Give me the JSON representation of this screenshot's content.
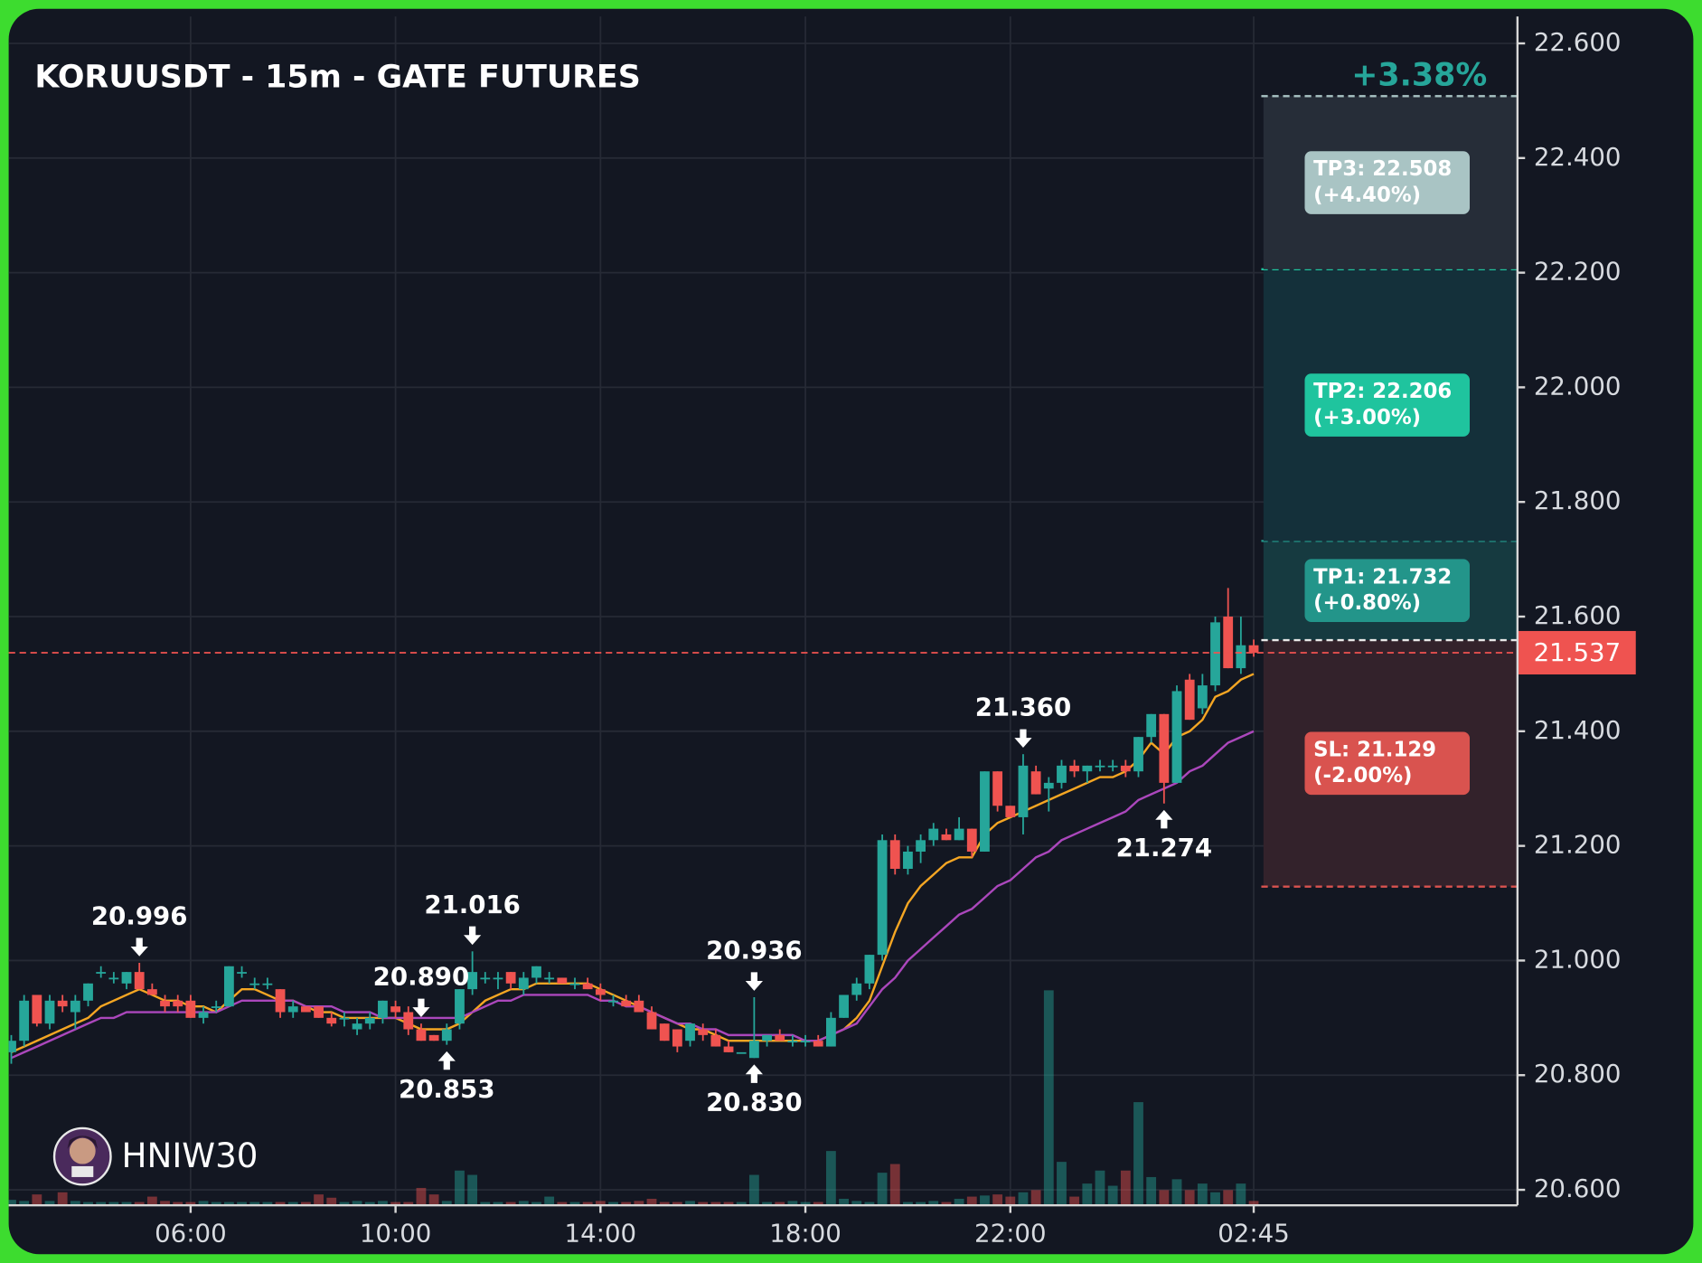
{
  "chart_data": {
    "type": "candlestick",
    "title": "KORUUSDT - 15m - GATE FUTURES",
    "categories": [
      null,
      null,
      null,
      null,
      null,
      null,
      null,
      null,
      null,
      null,
      null,
      null,
      null,
      null,
      "06:00",
      null,
      null,
      null,
      null,
      null,
      null,
      null,
      null,
      null,
      null,
      null,
      null,
      null,
      null,
      null,
      "10:00",
      null,
      null,
      null,
      null,
      null,
      null,
      null,
      null,
      null,
      null,
      null,
      null,
      null,
      null,
      null,
      "14:00",
      null,
      null,
      null,
      null,
      null,
      null,
      null,
      null,
      null,
      null,
      null,
      null,
      null,
      null,
      null,
      "18:00",
      null,
      null,
      null,
      null,
      null,
      null,
      null,
      null,
      null,
      null,
      null,
      null,
      null,
      null,
      null,
      "22:00",
      null,
      null,
      null,
      null,
      null,
      null,
      null,
      null,
      null,
      null,
      null,
      null,
      null,
      null,
      null,
      null,
      null,
      null,
      "02:45"
    ],
    "open": [
      20.84,
      20.86,
      20.94,
      20.89,
      20.93,
      20.91,
      20.93,
      20.98,
      20.97,
      20.96,
      20.98,
      20.95,
      20.93,
      20.93,
      20.93,
      20.9,
      20.92,
      20.92,
      20.98,
      20.96,
      20.96,
      20.95,
      20.91,
      20.92,
      20.92,
      20.9,
      20.9,
      20.88,
      20.89,
      20.9,
      20.92,
      20.91,
      20.88,
      20.87,
      20.86,
      20.89,
      20.95,
      20.97,
      20.97,
      20.98,
      20.95,
      20.97,
      20.97,
      20.97,
      20.96,
      20.96,
      20.95,
      20.93,
      20.93,
      20.93,
      20.91,
      20.89,
      20.88,
      20.86,
      20.88,
      20.87,
      20.85,
      20.84,
      20.83,
      20.86,
      20.87,
      20.86,
      20.86,
      20.86,
      20.85,
      20.9,
      20.94,
      20.96,
      21.01,
      21.21,
      21.16,
      21.19,
      21.21,
      21.22,
      21.21,
      21.23,
      21.19,
      21.33,
      21.27,
      21.25,
      21.33,
      21.3,
      21.31,
      21.34,
      21.33,
      21.34,
      21.34,
      21.34,
      21.33,
      21.39,
      21.43,
      21.31,
      21.49,
      21.44,
      21.48,
      21.6,
      21.51,
      21.55
    ],
    "high": [
      20.87,
      20.94,
      20.94,
      20.94,
      20.94,
      20.94,
      20.96,
      20.99,
      20.98,
      20.98,
      20.996,
      20.96,
      20.94,
      20.94,
      20.94,
      20.92,
      20.93,
      20.99,
      20.99,
      20.97,
      20.97,
      20.95,
      20.93,
      20.92,
      20.92,
      20.91,
      20.91,
      20.9,
      20.91,
      20.93,
      20.93,
      20.92,
      20.89,
      20.87,
      20.89,
      20.95,
      21.016,
      20.98,
      20.98,
      20.98,
      20.98,
      20.99,
      20.98,
      20.97,
      20.97,
      20.97,
      20.96,
      20.94,
      20.94,
      20.94,
      20.92,
      20.89,
      20.88,
      20.89,
      20.89,
      20.88,
      20.86,
      20.84,
      20.936,
      20.87,
      20.88,
      20.87,
      20.87,
      20.87,
      20.91,
      20.94,
      20.97,
      21.01,
      21.22,
      21.22,
      21.2,
      21.22,
      21.24,
      21.23,
      21.25,
      21.23,
      21.33,
      21.33,
      21.27,
      21.36,
      21.34,
      21.32,
      21.35,
      21.35,
      21.34,
      21.35,
      21.35,
      21.35,
      21.39,
      21.43,
      21.43,
      21.48,
      21.5,
      21.5,
      21.6,
      21.65,
      21.6,
      21.56
    ],
    "low": [
      20.82,
      20.85,
      20.885,
      20.88,
      20.91,
      20.88,
      20.92,
      20.97,
      20.96,
      20.95,
      20.95,
      20.94,
      20.91,
      20.91,
      20.9,
      20.89,
      20.91,
      20.92,
      20.97,
      20.95,
      20.95,
      20.9,
      20.9,
      20.91,
      20.9,
      20.885,
      20.885,
      20.87,
      20.88,
      20.89,
      20.9,
      20.87,
      20.86,
      20.86,
      20.853,
      20.88,
      20.94,
      20.96,
      20.95,
      20.95,
      20.94,
      20.96,
      20.96,
      20.96,
      20.95,
      20.95,
      20.93,
      20.92,
      20.92,
      20.91,
      20.88,
      20.86,
      20.84,
      20.85,
      20.86,
      20.85,
      20.84,
      20.84,
      20.83,
      20.85,
      20.86,
      20.85,
      20.85,
      20.85,
      20.85,
      20.9,
      20.93,
      20.95,
      21.0,
      21.15,
      21.15,
      21.17,
      21.2,
      21.21,
      21.21,
      21.18,
      21.19,
      21.26,
      21.25,
      21.22,
      21.29,
      21.26,
      21.3,
      21.32,
      21.31,
      21.33,
      21.33,
      21.32,
      21.32,
      21.38,
      21.274,
      21.31,
      21.42,
      21.43,
      21.47,
      21.51,
      21.5,
      21.53
    ],
    "close": [
      20.86,
      20.93,
      20.89,
      20.93,
      20.92,
      20.93,
      20.96,
      20.98,
      20.97,
      20.98,
      20.95,
      20.94,
      20.92,
      20.92,
      20.9,
      20.91,
      20.92,
      20.99,
      20.98,
      20.96,
      20.96,
      20.91,
      20.92,
      20.91,
      20.9,
      20.89,
      20.9,
      20.89,
      20.9,
      20.93,
      20.91,
      20.88,
      20.86,
      20.86,
      20.88,
      20.95,
      20.98,
      20.97,
      20.97,
      20.96,
      20.97,
      20.99,
      20.97,
      20.96,
      20.96,
      20.95,
      20.94,
      20.93,
      20.92,
      20.91,
      20.88,
      20.86,
      20.85,
      20.89,
      20.87,
      20.85,
      20.84,
      20.84,
      20.86,
      20.87,
      20.86,
      20.86,
      20.86,
      20.85,
      20.9,
      20.94,
      20.96,
      21.01,
      21.21,
      21.16,
      21.19,
      21.21,
      21.23,
      21.21,
      21.23,
      21.19,
      21.33,
      21.27,
      21.25,
      21.34,
      21.29,
      21.31,
      21.34,
      21.33,
      21.34,
      21.34,
      21.34,
      21.33,
      21.39,
      21.43,
      21.31,
      21.47,
      21.42,
      21.48,
      21.59,
      21.51,
      21.55,
      21.537
    ],
    "up_color": "#26a69a",
    "down_color": "#ef5350",
    "volume": [
      5,
      4,
      10,
      4,
      12,
      4,
      3,
      3,
      3,
      3,
      3,
      8,
      4,
      3,
      3,
      4,
      3,
      3,
      3,
      3,
      3,
      3,
      3,
      3,
      10,
      7,
      3,
      4,
      3,
      4,
      3,
      3,
      16,
      10,
      4,
      32,
      28,
      3,
      3,
      3,
      4,
      3,
      8,
      3,
      3,
      3,
      4,
      3,
      3,
      4,
      6,
      3,
      3,
      4,
      3,
      3,
      3,
      3,
      28,
      3,
      3,
      4,
      3,
      3,
      50,
      6,
      4,
      3,
      30,
      38,
      3,
      3,
      4,
      3,
      6,
      8,
      9,
      10,
      8,
      12,
      14,
      198,
      40,
      8,
      20,
      32,
      18,
      32,
      95,
      26,
      14,
      24,
      14,
      20,
      12,
      14,
      20,
      4
    ],
    "lines": [
      {
        "color": "#f5a623",
        "values": [
          20.84,
          20.85,
          20.86,
          20.87,
          20.88,
          20.89,
          20.9,
          20.92,
          20.93,
          20.94,
          20.95,
          20.94,
          20.93,
          20.93,
          20.92,
          20.92,
          20.91,
          20.93,
          20.95,
          20.95,
          20.94,
          20.93,
          20.93,
          20.92,
          20.91,
          20.91,
          20.9,
          20.9,
          20.9,
          20.9,
          20.9,
          20.89,
          20.88,
          20.88,
          20.88,
          20.89,
          20.91,
          20.93,
          20.94,
          20.95,
          20.95,
          20.96,
          20.96,
          20.96,
          20.96,
          20.96,
          20.95,
          20.94,
          20.93,
          20.92,
          20.91,
          20.9,
          20.89,
          20.88,
          20.88,
          20.87,
          20.86,
          20.86,
          20.86,
          20.86,
          20.86,
          20.86,
          20.86,
          20.86,
          20.87,
          20.88,
          20.9,
          20.93,
          20.99,
          21.05,
          21.1,
          21.13,
          21.15,
          21.17,
          21.18,
          21.18,
          21.22,
          21.24,
          21.25,
          21.26,
          21.27,
          21.28,
          21.29,
          21.3,
          21.31,
          21.32,
          21.32,
          21.33,
          21.35,
          21.38,
          21.36,
          21.39,
          21.4,
          21.42,
          21.46,
          21.47,
          21.49,
          21.5
        ]
      },
      {
        "color": "#ab47bc",
        "values": [
          20.83,
          20.84,
          20.85,
          20.86,
          20.87,
          20.88,
          20.89,
          20.9,
          20.9,
          20.91,
          20.91,
          20.91,
          20.91,
          20.91,
          20.91,
          20.91,
          20.91,
          20.92,
          20.93,
          20.93,
          20.93,
          20.93,
          20.93,
          20.92,
          20.92,
          20.92,
          20.91,
          20.91,
          20.91,
          20.9,
          20.9,
          20.9,
          20.9,
          20.9,
          20.9,
          20.9,
          20.91,
          20.92,
          20.93,
          20.93,
          20.94,
          20.94,
          20.94,
          20.94,
          20.94,
          20.94,
          20.93,
          20.93,
          20.92,
          20.92,
          20.91,
          20.9,
          20.89,
          20.89,
          20.88,
          20.88,
          20.87,
          20.87,
          20.87,
          20.87,
          20.87,
          20.87,
          20.86,
          20.86,
          20.87,
          20.88,
          20.89,
          20.92,
          20.95,
          20.97,
          21.0,
          21.02,
          21.04,
          21.06,
          21.08,
          21.09,
          21.11,
          21.13,
          21.14,
          21.16,
          21.18,
          21.19,
          21.21,
          21.22,
          21.23,
          21.24,
          21.25,
          21.26,
          21.28,
          21.29,
          21.3,
          21.31,
          21.33,
          21.34,
          21.36,
          21.38,
          21.39,
          21.4
        ]
      }
    ],
    "ylim": [
      20.573,
      22.647
    ],
    "yticks": [
      {
        "value": 20.6,
        "label": "20.600"
      },
      {
        "value": 20.8,
        "label": "20.800"
      },
      {
        "value": 21.0,
        "label": "21.000"
      },
      {
        "value": 21.2,
        "label": "21.200"
      },
      {
        "value": 21.4,
        "label": "21.400"
      },
      {
        "value": 21.6,
        "label": "21.600"
      },
      {
        "value": 21.8,
        "label": "21.800"
      },
      {
        "value": 22.0,
        "label": "22.000"
      },
      {
        "value": 22.2,
        "label": "22.200"
      },
      {
        "value": 22.4,
        "label": "22.400"
      },
      {
        "value": 22.6,
        "label": "22.600"
      }
    ],
    "grid": true,
    "price_labels": [
      {
        "value": 20.996,
        "label": "20.996"
      },
      {
        "value": 20.89,
        "label": "20.890"
      },
      {
        "value": 21.016,
        "label": "21.016"
      },
      {
        "value": 20.853,
        "label": "20.853"
      },
      {
        "value": 20.936,
        "label": "20.936"
      },
      {
        "value": 20.83,
        "label": "20.830"
      },
      {
        "value": 21.36,
        "label": "21.360"
      },
      {
        "value": 21.274,
        "label": "21.274"
      }
    ],
    "trade": {
      "entry": 21.559,
      "entry_color": "#e8e8e8",
      "change": "+3.38%",
      "change_color": "#26a69a",
      "levels": [
        {
          "label": "TP1: 21.732",
          "percent": "(+0.80%)",
          "value": 21.732,
          "color": "#23958a",
          "zone_color": "#163a40"
        },
        {
          "label": "TP2: 22.206",
          "percent": "(+3.00%)",
          "value": 22.206,
          "color": "#1fc49e",
          "zone_color": "#14303a"
        },
        {
          "label": "TP3: 22.508",
          "percent": "(+4.40%)",
          "value": 22.508,
          "color": "#a9c4c4",
          "zone_color": "#262d38"
        },
        {
          "label": "SL: 21.129",
          "percent": "(-2.00%)",
          "value": 21.129,
          "color": "#d9534f",
          "zone_color": "#33222b"
        }
      ]
    },
    "watermark": "HNIW30"
  }
}
